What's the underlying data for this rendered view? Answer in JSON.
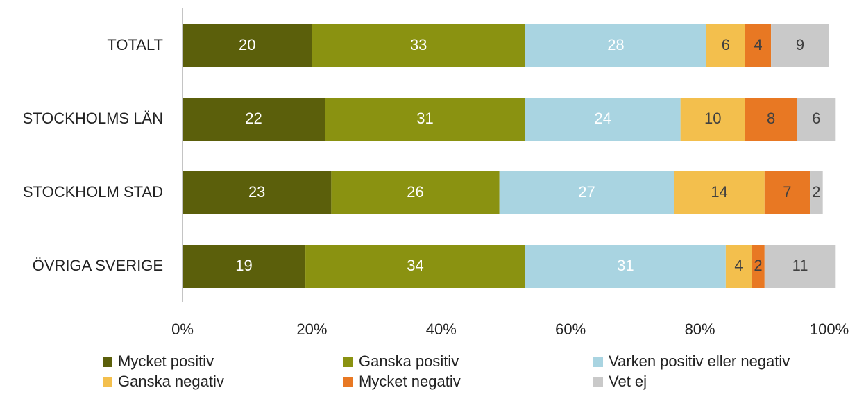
{
  "chart_data": {
    "type": "stacked_barh",
    "categories": [
      "TOTALT",
      "STOCKHOLMS LÄN",
      "STOCKHOLM STAD",
      "ÖVRIGA SVERIGE"
    ],
    "series": [
      {
        "name": "Mycket positiv",
        "color": "#5b5f0b",
        "label_color": "#ffffff",
        "values": [
          20,
          22,
          23,
          19
        ]
      },
      {
        "name": "Ganska positiv",
        "color": "#8a9211",
        "label_color": "#ffffff",
        "values": [
          33,
          31,
          26,
          34
        ]
      },
      {
        "name": "Varken positiv eller negativ",
        "color": "#a9d4e1",
        "label_color": "#ffffff",
        "values": [
          28,
          24,
          27,
          31
        ]
      },
      {
        "name": "Ganska negativ",
        "color": "#f3bf4d",
        "label_color": "#404040",
        "values": [
          6,
          10,
          14,
          4
        ]
      },
      {
        "name": "Mycket negativ",
        "color": "#e87823",
        "label_color": "#404040",
        "values": [
          4,
          8,
          7,
          2
        ]
      },
      {
        "name": "Vet ej",
        "color": "#c9c9c9",
        "label_color": "#404040",
        "values": [
          9,
          6,
          2,
          11
        ]
      }
    ],
    "xlim": [
      0,
      100
    ],
    "xticks": [
      {
        "value": 0,
        "label": "0%"
      },
      {
        "value": 20,
        "label": "20%"
      },
      {
        "value": 40,
        "label": "40%"
      },
      {
        "value": 60,
        "label": "60%"
      },
      {
        "value": 80,
        "label": "80%"
      },
      {
        "value": 100,
        "label": "100%"
      }
    ],
    "legend": "bottom"
  }
}
